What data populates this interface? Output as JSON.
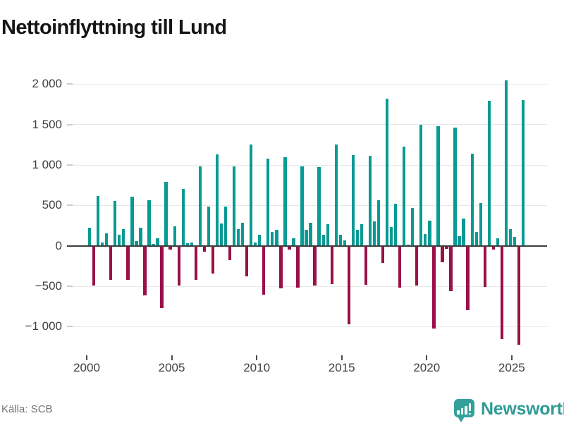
{
  "header": {
    "title": "Nettoinflyttning till Lund"
  },
  "footer": {
    "source": "Källa: SCB",
    "brand": "Newsworthy"
  },
  "colors": {
    "positive": "#089a94",
    "negative": "#9a1048",
    "brand_teal": "#34a09a",
    "brand_text": "#2f9c94"
  },
  "chart_data": {
    "type": "bar",
    "title": "Nettoinflyttning till Lund",
    "frequency": "quarterly",
    "start": "2000-Q1",
    "end": "2025-Q3",
    "grid": "horizontal",
    "legend": "none",
    "ylim": [
      -1300,
      2200
    ],
    "xticks": [
      "2000",
      "2005",
      "2010",
      "2015",
      "2020",
      "2025"
    ],
    "yticks": [
      {
        "value": 2000,
        "label": "2 000"
      },
      {
        "value": 1500,
        "label": "1 500"
      },
      {
        "value": 1000,
        "label": "1 000"
      },
      {
        "value": 500,
        "label": "500"
      },
      {
        "value": 0,
        "label": "0"
      },
      {
        "value": -500,
        "label": "−500"
      },
      {
        "value": -1000,
        "label": "−1 000"
      }
    ],
    "series": [
      {
        "name": "Nettoinflyttning till Lund",
        "start_year": 2000,
        "start_quarter": 1,
        "values": [
          220,
          -490,
          615,
          45,
          155,
          -420,
          555,
          140,
          210,
          -420,
          610,
          55,
          220,
          -615,
          560,
          25,
          90,
          -770,
          790,
          -45,
          245,
          -490,
          700,
          30,
          40,
          -425,
          980,
          -70,
          485,
          -340,
          1130,
          275,
          490,
          -180,
          980,
          210,
          285,
          -375,
          1250,
          40,
          140,
          -605,
          1080,
          170,
          195,
          -530,
          1100,
          -50,
          90,
          -515,
          980,
          195,
          285,
          -495,
          975,
          135,
          265,
          -470,
          1250,
          140,
          70,
          -970,
          1120,
          200,
          270,
          -480,
          1110,
          305,
          565,
          -210,
          1820,
          230,
          520,
          -515,
          1230,
          15,
          465,
          -490,
          1500,
          150,
          310,
          -1020,
          1480,
          -200,
          -40,
          -565,
          1465,
          120,
          335,
          -800,
          1140,
          175,
          530,
          -510,
          1790,
          -45,
          90,
          -1150,
          2050,
          205,
          110,
          -1220,
          1800
        ]
      }
    ]
  }
}
